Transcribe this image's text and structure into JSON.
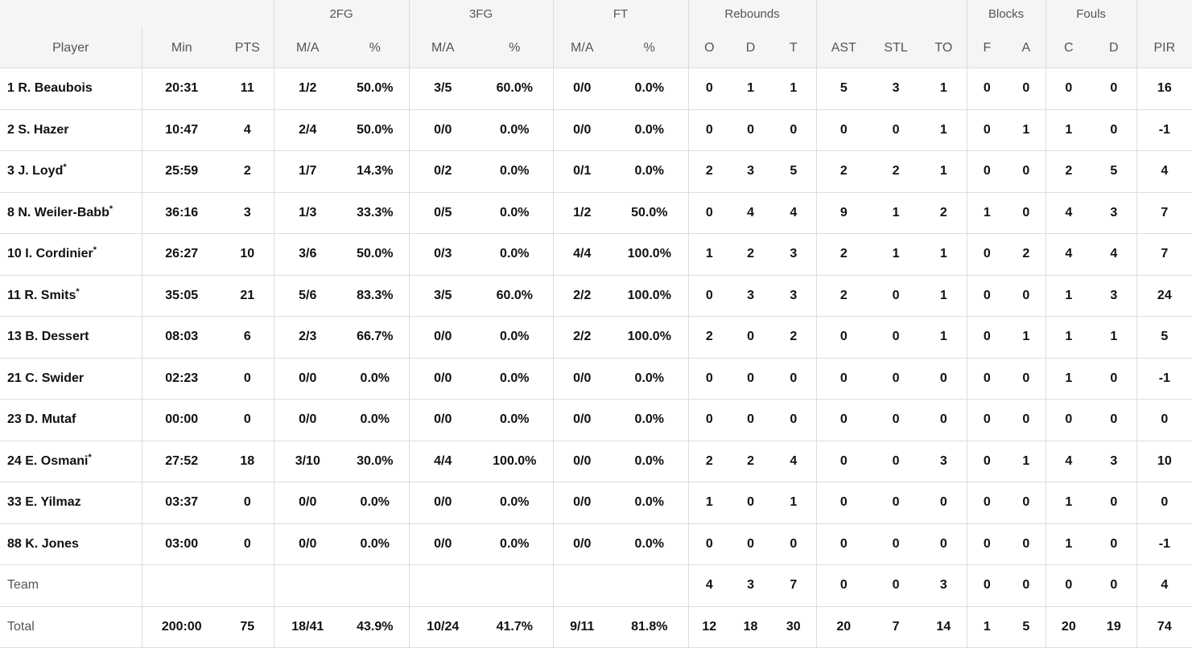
{
  "groups": {
    "fg2": "2FG",
    "fg3": "3FG",
    "ft": "FT",
    "rebounds": "Rebounds",
    "blocks": "Blocks",
    "fouls": "Fouls"
  },
  "columns": {
    "player": "Player",
    "min": "Min",
    "pts": "PTS",
    "fg2_ma": "M/A",
    "fg2_pct": "%",
    "fg3_ma": "M/A",
    "fg3_pct": "%",
    "ft_ma": "M/A",
    "ft_pct": "%",
    "reb_o": "O",
    "reb_d": "D",
    "reb_t": "T",
    "ast": "AST",
    "stl": "STL",
    "to": "TO",
    "blk_f": "F",
    "blk_a": "A",
    "foul_c": "C",
    "foul_d": "D",
    "pir": "PIR"
  },
  "starter_mark": "*",
  "players": [
    {
      "name": "1 R. Beaubois",
      "starter": false,
      "min": "20:31",
      "pts": "11",
      "fg2_ma": "1/2",
      "fg2_pct": "50.0%",
      "fg3_ma": "3/5",
      "fg3_pct": "60.0%",
      "ft_ma": "0/0",
      "ft_pct": "0.0%",
      "reb_o": "0",
      "reb_d": "1",
      "reb_t": "1",
      "ast": "5",
      "stl": "3",
      "to": "1",
      "blk_f": "0",
      "blk_a": "0",
      "foul_c": "0",
      "foul_d": "0",
      "pir": "16"
    },
    {
      "name": "2 S. Hazer",
      "starter": false,
      "min": "10:47",
      "pts": "4",
      "fg2_ma": "2/4",
      "fg2_pct": "50.0%",
      "fg3_ma": "0/0",
      "fg3_pct": "0.0%",
      "ft_ma": "0/0",
      "ft_pct": "0.0%",
      "reb_o": "0",
      "reb_d": "0",
      "reb_t": "0",
      "ast": "0",
      "stl": "0",
      "to": "1",
      "blk_f": "0",
      "blk_a": "1",
      "foul_c": "1",
      "foul_d": "0",
      "pir": "-1"
    },
    {
      "name": "3 J. Loyd",
      "starter": true,
      "min": "25:59",
      "pts": "2",
      "fg2_ma": "1/7",
      "fg2_pct": "14.3%",
      "fg3_ma": "0/2",
      "fg3_pct": "0.0%",
      "ft_ma": "0/1",
      "ft_pct": "0.0%",
      "reb_o": "2",
      "reb_d": "3",
      "reb_t": "5",
      "ast": "2",
      "stl": "2",
      "to": "1",
      "blk_f": "0",
      "blk_a": "0",
      "foul_c": "2",
      "foul_d": "5",
      "pir": "4"
    },
    {
      "name": "8 N. Weiler-Babb",
      "starter": true,
      "min": "36:16",
      "pts": "3",
      "fg2_ma": "1/3",
      "fg2_pct": "33.3%",
      "fg3_ma": "0/5",
      "fg3_pct": "0.0%",
      "ft_ma": "1/2",
      "ft_pct": "50.0%",
      "reb_o": "0",
      "reb_d": "4",
      "reb_t": "4",
      "ast": "9",
      "stl": "1",
      "to": "2",
      "blk_f": "1",
      "blk_a": "0",
      "foul_c": "4",
      "foul_d": "3",
      "pir": "7"
    },
    {
      "name": "10 I. Cordinier",
      "starter": true,
      "min": "26:27",
      "pts": "10",
      "fg2_ma": "3/6",
      "fg2_pct": "50.0%",
      "fg3_ma": "0/3",
      "fg3_pct": "0.0%",
      "ft_ma": "4/4",
      "ft_pct": "100.0%",
      "reb_o": "1",
      "reb_d": "2",
      "reb_t": "3",
      "ast": "2",
      "stl": "1",
      "to": "1",
      "blk_f": "0",
      "blk_a": "2",
      "foul_c": "4",
      "foul_d": "4",
      "pir": "7"
    },
    {
      "name": "11 R. Smits",
      "starter": true,
      "min": "35:05",
      "pts": "21",
      "fg2_ma": "5/6",
      "fg2_pct": "83.3%",
      "fg3_ma": "3/5",
      "fg3_pct": "60.0%",
      "ft_ma": "2/2",
      "ft_pct": "100.0%",
      "reb_o": "0",
      "reb_d": "3",
      "reb_t": "3",
      "ast": "2",
      "stl": "0",
      "to": "1",
      "blk_f": "0",
      "blk_a": "0",
      "foul_c": "1",
      "foul_d": "3",
      "pir": "24"
    },
    {
      "name": "13 B. Dessert",
      "starter": false,
      "min": "08:03",
      "pts": "6",
      "fg2_ma": "2/3",
      "fg2_pct": "66.7%",
      "fg3_ma": "0/0",
      "fg3_pct": "0.0%",
      "ft_ma": "2/2",
      "ft_pct": "100.0%",
      "reb_o": "2",
      "reb_d": "0",
      "reb_t": "2",
      "ast": "0",
      "stl": "0",
      "to": "1",
      "blk_f": "0",
      "blk_a": "1",
      "foul_c": "1",
      "foul_d": "1",
      "pir": "5"
    },
    {
      "name": "21 C. Swider",
      "starter": false,
      "min": "02:23",
      "pts": "0",
      "fg2_ma": "0/0",
      "fg2_pct": "0.0%",
      "fg3_ma": "0/0",
      "fg3_pct": "0.0%",
      "ft_ma": "0/0",
      "ft_pct": "0.0%",
      "reb_o": "0",
      "reb_d": "0",
      "reb_t": "0",
      "ast": "0",
      "stl": "0",
      "to": "0",
      "blk_f": "0",
      "blk_a": "0",
      "foul_c": "1",
      "foul_d": "0",
      "pir": "-1"
    },
    {
      "name": "23 D. Mutaf",
      "starter": false,
      "min": "00:00",
      "pts": "0",
      "fg2_ma": "0/0",
      "fg2_pct": "0.0%",
      "fg3_ma": "0/0",
      "fg3_pct": "0.0%",
      "ft_ma": "0/0",
      "ft_pct": "0.0%",
      "reb_o": "0",
      "reb_d": "0",
      "reb_t": "0",
      "ast": "0",
      "stl": "0",
      "to": "0",
      "blk_f": "0",
      "blk_a": "0",
      "foul_c": "0",
      "foul_d": "0",
      "pir": "0"
    },
    {
      "name": "24 E. Osmani",
      "starter": true,
      "min": "27:52",
      "pts": "18",
      "fg2_ma": "3/10",
      "fg2_pct": "30.0%",
      "fg3_ma": "4/4",
      "fg3_pct": "100.0%",
      "ft_ma": "0/0",
      "ft_pct": "0.0%",
      "reb_o": "2",
      "reb_d": "2",
      "reb_t": "4",
      "ast": "0",
      "stl": "0",
      "to": "3",
      "blk_f": "0",
      "blk_a": "1",
      "foul_c": "4",
      "foul_d": "3",
      "pir": "10"
    },
    {
      "name": "33 E. Yilmaz",
      "starter": false,
      "min": "03:37",
      "pts": "0",
      "fg2_ma": "0/0",
      "fg2_pct": "0.0%",
      "fg3_ma": "0/0",
      "fg3_pct": "0.0%",
      "ft_ma": "0/0",
      "ft_pct": "0.0%",
      "reb_o": "1",
      "reb_d": "0",
      "reb_t": "1",
      "ast": "0",
      "stl": "0",
      "to": "0",
      "blk_f": "0",
      "blk_a": "0",
      "foul_c": "1",
      "foul_d": "0",
      "pir": "0"
    },
    {
      "name": "88 K. Jones",
      "starter": false,
      "min": "03:00",
      "pts": "0",
      "fg2_ma": "0/0",
      "fg2_pct": "0.0%",
      "fg3_ma": "0/0",
      "fg3_pct": "0.0%",
      "ft_ma": "0/0",
      "ft_pct": "0.0%",
      "reb_o": "0",
      "reb_d": "0",
      "reb_t": "0",
      "ast": "0",
      "stl": "0",
      "to": "0",
      "blk_f": "0",
      "blk_a": "0",
      "foul_c": "1",
      "foul_d": "0",
      "pir": "-1"
    }
  ],
  "team": {
    "name": "Team",
    "min": "",
    "pts": "",
    "fg2_ma": "",
    "fg2_pct": "",
    "fg3_ma": "",
    "fg3_pct": "",
    "ft_ma": "",
    "ft_pct": "",
    "reb_o": "4",
    "reb_d": "3",
    "reb_t": "7",
    "ast": "0",
    "stl": "0",
    "to": "3",
    "blk_f": "0",
    "blk_a": "0",
    "foul_c": "0",
    "foul_d": "0",
    "pir": "4"
  },
  "total": {
    "name": "Total",
    "min": "200:00",
    "pts": "75",
    "fg2_ma": "18/41",
    "fg2_pct": "43.9%",
    "fg3_ma": "10/24",
    "fg3_pct": "41.7%",
    "ft_ma": "9/11",
    "ft_pct": "81.8%",
    "reb_o": "12",
    "reb_d": "18",
    "reb_t": "30",
    "ast": "20",
    "stl": "7",
    "to": "14",
    "blk_f": "1",
    "blk_a": "5",
    "foul_c": "20",
    "foul_d": "19",
    "pir": "74"
  }
}
